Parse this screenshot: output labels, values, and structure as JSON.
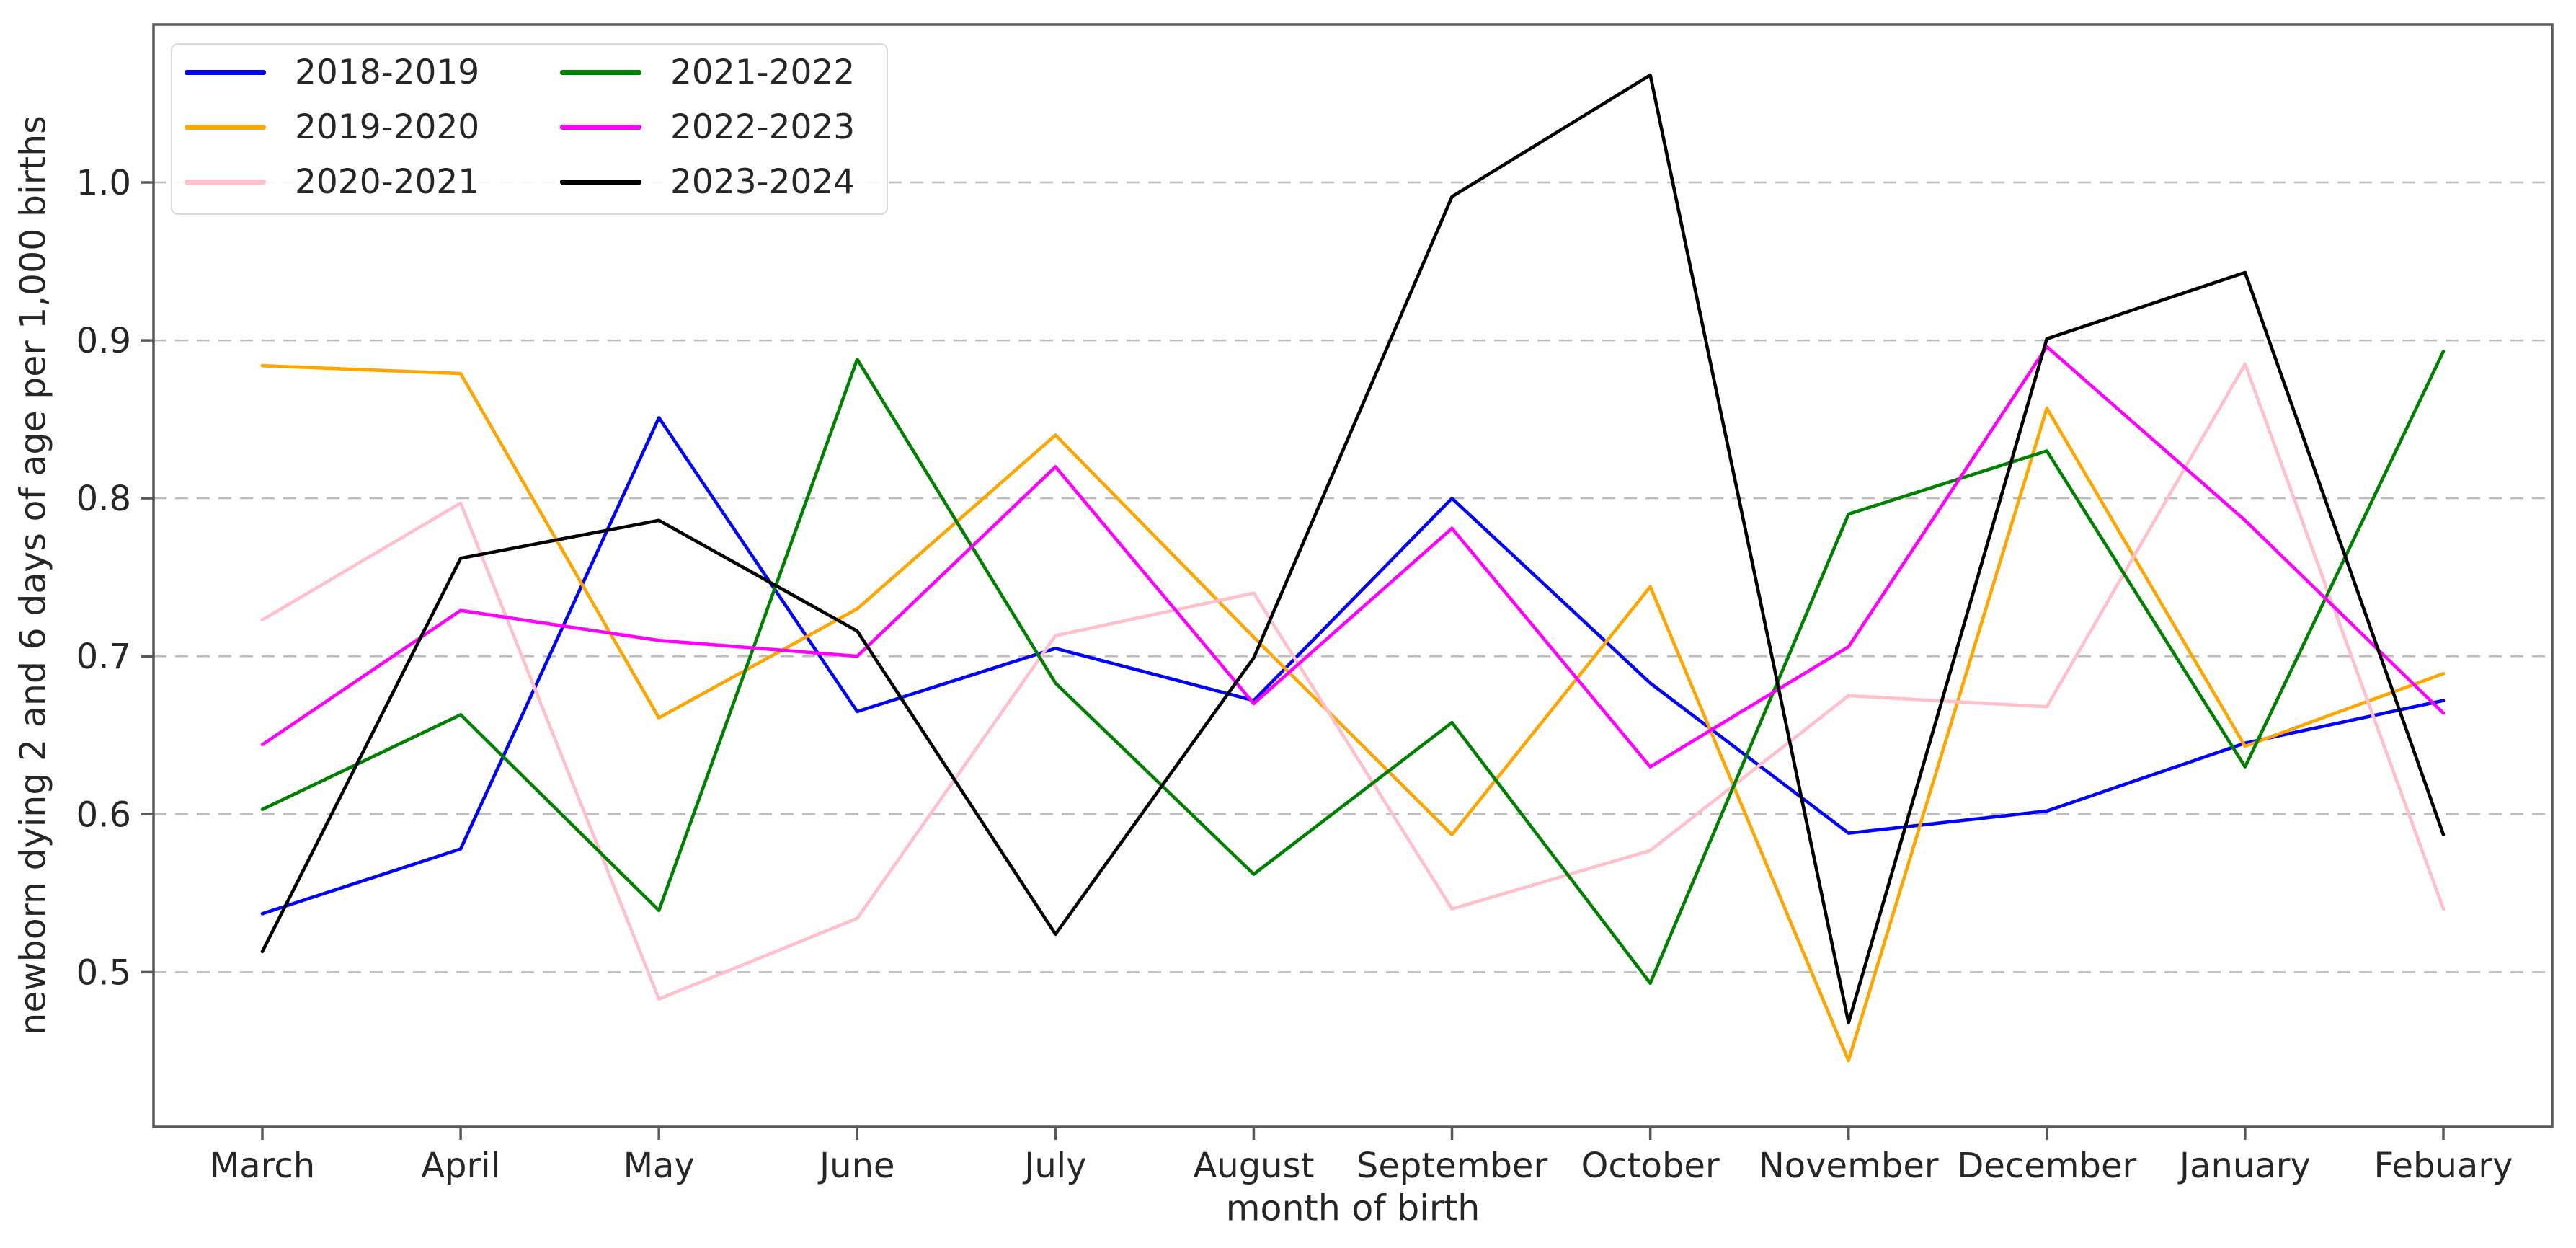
{
  "chart_data": {
    "type": "line",
    "title": "",
    "xlabel": "month of birth",
    "ylabel": "newborn dying 2 and 6 days of age per 1,000 births",
    "categories": [
      "March",
      "April",
      "May",
      "June",
      "July",
      "August",
      "September",
      "October",
      "November",
      "December",
      "January",
      "Febuary"
    ],
    "series": [
      {
        "name": "2018-2019",
        "color": "#0000ff",
        "values": [
          0.537,
          0.578,
          0.851,
          0.665,
          0.705,
          0.672,
          0.8,
          0.683,
          0.588,
          0.602,
          0.645,
          0.672
        ]
      },
      {
        "name": "2019-2020",
        "color": "#ffa500",
        "values": [
          0.884,
          0.879,
          0.661,
          0.73,
          0.84,
          0.712,
          0.587,
          0.744,
          0.444,
          0.857,
          0.643,
          0.689
        ]
      },
      {
        "name": "2020-2021",
        "color": "#ffc0cb",
        "values": [
          0.723,
          0.797,
          0.483,
          0.534,
          0.713,
          0.74,
          0.54,
          0.577,
          0.675,
          0.668,
          0.885,
          0.54
        ]
      },
      {
        "name": "2021-2022",
        "color": "#008000",
        "values": [
          0.603,
          0.663,
          0.539,
          0.888,
          0.683,
          0.562,
          0.658,
          0.493,
          0.79,
          0.83,
          0.63,
          0.893
        ]
      },
      {
        "name": "2022-2023",
        "color": "#ff00ff",
        "values": [
          0.644,
          0.729,
          0.71,
          0.7,
          0.82,
          0.67,
          0.781,
          0.63,
          0.706,
          0.896,
          0.786,
          0.664
        ]
      },
      {
        "name": "2023-2024",
        "color": "#000000",
        "values": [
          0.513,
          0.762,
          0.786,
          0.716,
          0.524,
          0.699,
          0.991,
          1.068,
          0.468,
          0.901,
          0.943,
          0.587
        ]
      }
    ],
    "y_ticks": [
      0.5,
      0.6,
      0.7,
      0.8,
      0.9,
      1.0
    ],
    "ylim": [
      0.402,
      1.1
    ],
    "grid": {
      "axis": "y",
      "style": "dashed",
      "color": "#bdbdbd"
    },
    "axis_color": "#595959",
    "tick_label_color": "#262626",
    "legend": {
      "position": "upper-left",
      "columns": 2
    }
  }
}
